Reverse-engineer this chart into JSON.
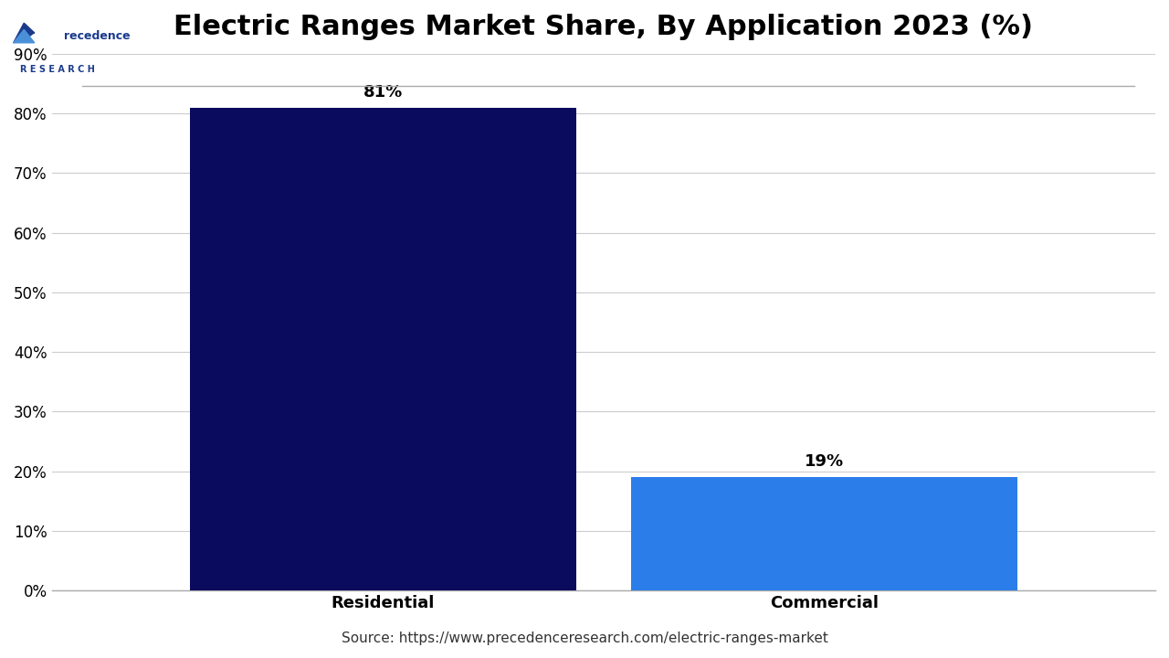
{
  "title": "Electric Ranges Market Share, By Application 2023 (%)",
  "categories": [
    "Residential",
    "Commercial"
  ],
  "values": [
    81,
    19
  ],
  "bar_colors": [
    "#0a0a5e",
    "#2b7de9"
  ],
  "bar_labels": [
    "81%",
    "19%"
  ],
  "ylim": [
    0,
    90
  ],
  "yticks": [
    0,
    10,
    20,
    30,
    40,
    50,
    60,
    70,
    80,
    90
  ],
  "ytick_labels": [
    "0%",
    "10%",
    "20%",
    "30%",
    "40%",
    "50%",
    "60%",
    "70%",
    "80%",
    "90%"
  ],
  "background_color": "#ffffff",
  "source_text": "Source: https://www.precedenceresearch.com/electric-ranges-market",
  "title_fontsize": 22,
  "label_fontsize": 13,
  "tick_fontsize": 12,
  "source_fontsize": 11,
  "bar_width": 0.35,
  "grid_color": "#cccccc"
}
